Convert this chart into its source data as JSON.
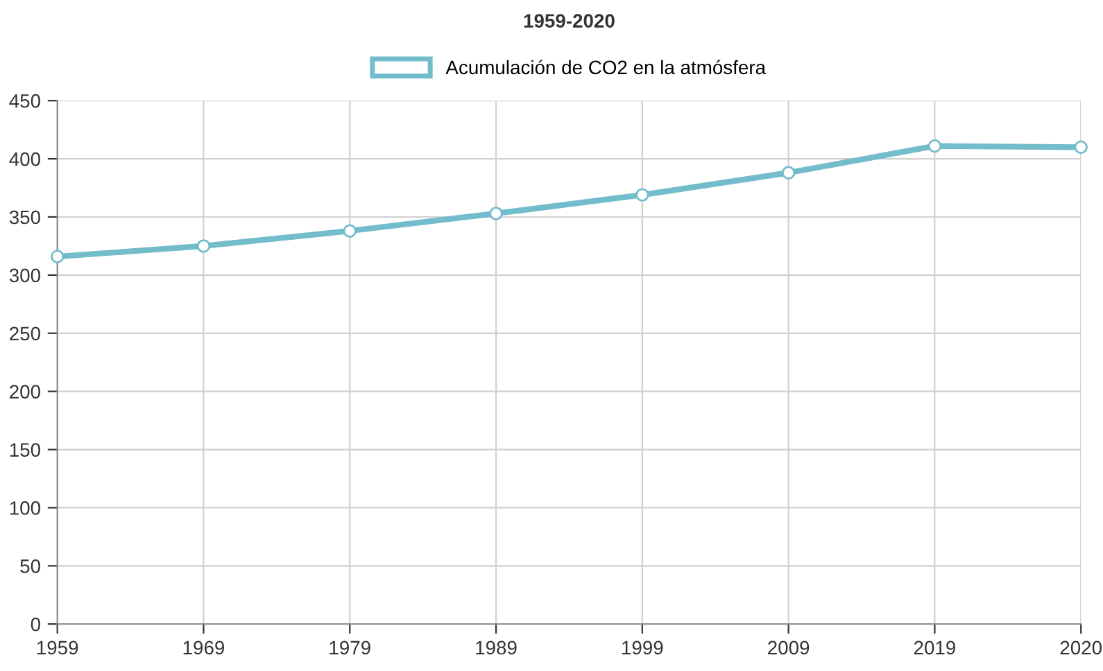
{
  "chart_data": {
    "type": "line",
    "title": "1959-2020",
    "categories": [
      "1959",
      "1969",
      "1979",
      "1989",
      "1999",
      "2009",
      "2019",
      "2020"
    ],
    "series": [
      {
        "name": "Acumulación de CO2 en la atmósfera",
        "color": "#72bccb",
        "values": [
          316,
          325,
          338,
          353,
          369,
          388,
          411,
          410
        ]
      }
    ],
    "ylim": [
      0,
      450
    ],
    "yticks": [
      0,
      50,
      100,
      150,
      200,
      250,
      300,
      350,
      400,
      450
    ],
    "grid": true,
    "legend": "top",
    "marker": "circle",
    "line_style": "solid"
  }
}
